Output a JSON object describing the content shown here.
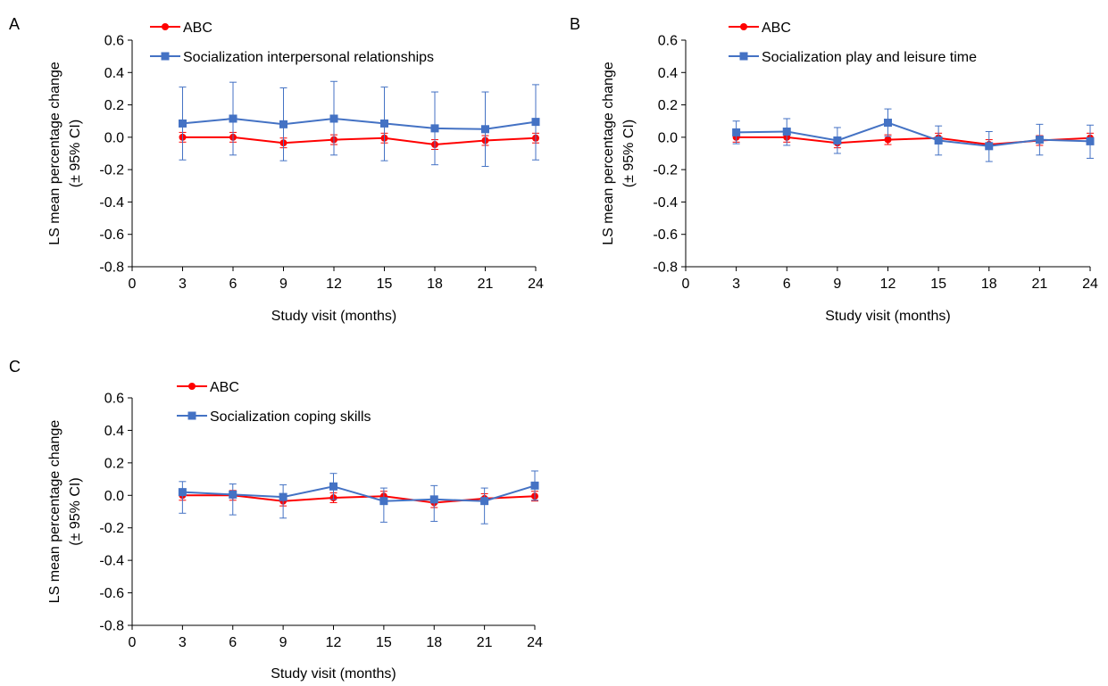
{
  "chart_data": [
    {
      "panel": "A",
      "type": "line",
      "xlabel": "Study visit (months)",
      "ylabel": "LS mean percentage change",
      "ylabel2": "(± 95% CI)",
      "xlim": [
        0,
        24
      ],
      "ylim": [
        -0.8,
        0.6
      ],
      "xticks": [
        "0",
        "3",
        "6",
        "9",
        "12",
        "15",
        "18",
        "21",
        "24"
      ],
      "yticks": [
        "-0.8",
        "-0.6",
        "-0.4",
        "-0.2",
        "0.0",
        "0.2",
        "0.4",
        "0.6"
      ],
      "legend_position": "top-left",
      "x": [
        3,
        6,
        9,
        12,
        15,
        18,
        21,
        24
      ],
      "series": [
        {
          "name": "ABC",
          "color": "#ff0000",
          "marker": "circle",
          "values": [
            0.0,
            0.0,
            -0.035,
            -0.015,
            -0.005,
            -0.045,
            -0.02,
            -0.005
          ],
          "ci_low": [
            -0.03,
            -0.03,
            -0.065,
            -0.045,
            -0.035,
            -0.075,
            -0.05,
            -0.035
          ],
          "ci_high": [
            0.03,
            0.03,
            -0.005,
            0.015,
            0.025,
            -0.015,
            0.01,
            0.025
          ]
        },
        {
          "name": "Socialization interpersonal relationships",
          "color": "#4472c4",
          "marker": "square",
          "values": [
            0.085,
            0.115,
            0.08,
            0.115,
            0.085,
            0.055,
            0.05,
            0.095
          ],
          "ci_low": [
            -0.14,
            -0.11,
            -0.145,
            -0.11,
            -0.145,
            -0.17,
            -0.18,
            -0.14
          ],
          "ci_high": [
            0.31,
            0.34,
            0.305,
            0.345,
            0.31,
            0.28,
            0.28,
            0.325
          ]
        }
      ]
    },
    {
      "panel": "B",
      "type": "line",
      "xlabel": "Study visit (months)",
      "ylabel": "LS mean percentage change",
      "ylabel2": "(± 95% CI)",
      "xlim": [
        0,
        24
      ],
      "ylim": [
        -0.8,
        0.6
      ],
      "xticks": [
        "0",
        "3",
        "6",
        "9",
        "12",
        "15",
        "18",
        "21",
        "24"
      ],
      "yticks": [
        "-0.8",
        "-0.6",
        "-0.4",
        "-0.2",
        "0.0",
        "0.2",
        "0.4",
        "0.6"
      ],
      "legend_position": "top-left",
      "x": [
        3,
        6,
        9,
        12,
        15,
        18,
        21,
        24
      ],
      "series": [
        {
          "name": "ABC",
          "color": "#ff0000",
          "marker": "circle",
          "values": [
            0.0,
            0.0,
            -0.035,
            -0.015,
            -0.005,
            -0.045,
            -0.02,
            -0.005
          ],
          "ci_low": [
            -0.03,
            -0.03,
            -0.065,
            -0.045,
            -0.035,
            -0.075,
            -0.05,
            -0.035
          ],
          "ci_high": [
            0.03,
            0.03,
            -0.005,
            0.015,
            0.025,
            -0.015,
            0.01,
            0.025
          ]
        },
        {
          "name": "Socialization play and leisure time",
          "color": "#4472c4",
          "marker": "square",
          "values": [
            0.03,
            0.035,
            -0.02,
            0.09,
            -0.02,
            -0.055,
            -0.015,
            -0.025
          ],
          "ci_low": [
            -0.04,
            -0.05,
            -0.1,
            0.005,
            -0.11,
            -0.15,
            -0.11,
            -0.13
          ],
          "ci_high": [
            0.1,
            0.115,
            0.06,
            0.175,
            0.07,
            0.035,
            0.08,
            0.075
          ]
        }
      ]
    },
    {
      "panel": "C",
      "type": "line",
      "xlabel": "Study visit (months)",
      "ylabel": "LS mean percentage change",
      "ylabel2": "(± 95% CI)",
      "xlim": [
        0,
        24
      ],
      "ylim": [
        -0.8,
        0.6
      ],
      "xticks": [
        "0",
        "3",
        "6",
        "9",
        "12",
        "15",
        "18",
        "21",
        "24"
      ],
      "yticks": [
        "-0.8",
        "-0.6",
        "-0.4",
        "-0.2",
        "0.0",
        "0.2",
        "0.4",
        "0.6"
      ],
      "legend_position": "top-left",
      "x": [
        3,
        6,
        9,
        12,
        15,
        18,
        21,
        24
      ],
      "series": [
        {
          "name": "ABC",
          "color": "#ff0000",
          "marker": "circle",
          "values": [
            0.0,
            0.0,
            -0.035,
            -0.015,
            -0.005,
            -0.045,
            -0.02,
            -0.005
          ],
          "ci_low": [
            -0.03,
            -0.03,
            -0.065,
            -0.045,
            -0.035,
            -0.075,
            -0.05,
            -0.035
          ],
          "ci_high": [
            0.03,
            0.03,
            -0.005,
            0.015,
            0.025,
            -0.015,
            0.01,
            0.025
          ]
        },
        {
          "name": "Socialization coping skills",
          "color": "#4472c4",
          "marker": "square",
          "values": [
            0.02,
            0.005,
            -0.01,
            0.055,
            -0.035,
            -0.025,
            -0.035,
            0.06
          ],
          "ci_low": [
            -0.11,
            -0.12,
            -0.14,
            -0.025,
            -0.165,
            -0.16,
            -0.175,
            -0.03
          ],
          "ci_high": [
            0.085,
            0.07,
            0.065,
            0.135,
            0.045,
            0.06,
            0.045,
            0.15
          ]
        }
      ]
    }
  ]
}
